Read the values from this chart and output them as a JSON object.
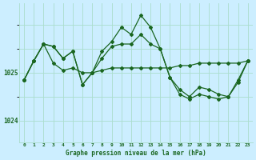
{
  "title": "Graphe pression niveau de la mer (hPa)",
  "bg_color": "#cceeff",
  "grid_color": "#aaddcc",
  "line_color": "#1a6620",
  "x_labels": [
    "0",
    "1",
    "2",
    "3",
    "4",
    "5",
    "6",
    "7",
    "8",
    "9",
    "10",
    "11",
    "12",
    "13",
    "14",
    "15",
    "16",
    "17",
    "18",
    "19",
    "20",
    "21",
    "22",
    "23"
  ],
  "yticks": [
    1024,
    1025
  ],
  "ylim": [
    1023.55,
    1026.45
  ],
  "series1": [
    1024.85,
    1025.25,
    1025.6,
    1025.2,
    1025.05,
    1025.1,
    1025.0,
    1025.0,
    1025.05,
    1025.1,
    1025.1,
    1025.1,
    1025.1,
    1025.1,
    1025.1,
    1025.1,
    1025.15,
    1025.15,
    1025.2,
    1025.2,
    1025.2,
    1025.2,
    1025.2,
    1025.25
  ],
  "series2": [
    1024.85,
    1025.25,
    1025.6,
    1025.55,
    1025.3,
    1025.45,
    1024.75,
    1025.0,
    1025.45,
    1025.65,
    1025.95,
    1025.8,
    1026.2,
    1025.95,
    1025.5,
    1024.9,
    1024.55,
    1024.45,
    1024.55,
    1024.5,
    1024.45,
    1024.5,
    1024.8,
    1025.25
  ],
  "series3": [
    1024.85,
    1025.25,
    1025.6,
    1025.55,
    1025.3,
    1025.45,
    1024.75,
    1025.0,
    1025.3,
    1025.55,
    1025.6,
    1025.6,
    1025.8,
    1025.6,
    1025.5,
    1024.9,
    1024.65,
    1024.5,
    1024.7,
    1024.65,
    1024.55,
    1024.5,
    1024.85,
    1025.25
  ]
}
